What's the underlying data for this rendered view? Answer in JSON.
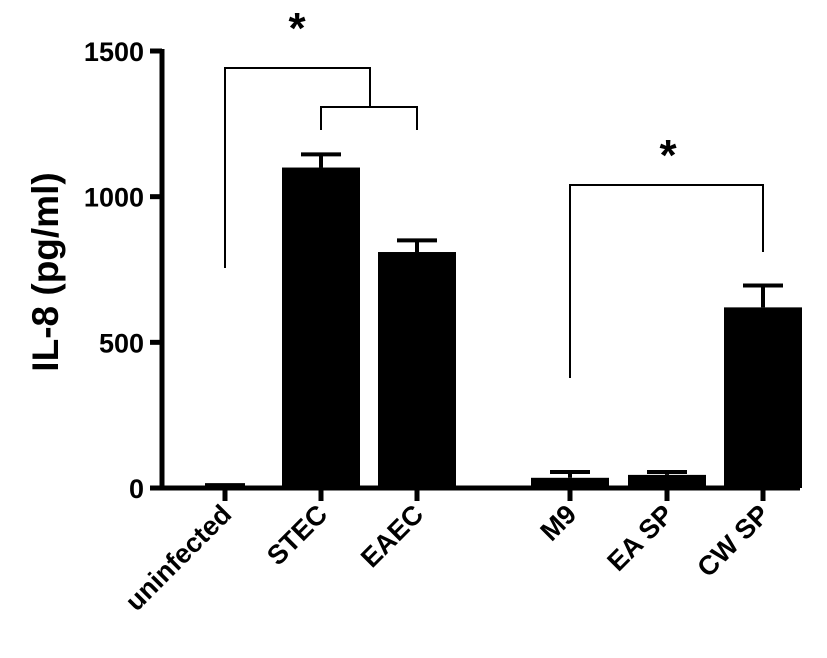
{
  "chart_data": {
    "type": "bar",
    "ylabel": "IL-8 (pg/ml)",
    "ylim": [
      0,
      1500
    ],
    "yticks": [
      0,
      500,
      1000,
      1500
    ],
    "ytick_labels": [
      "0",
      "500",
      "1000",
      "1500"
    ],
    "categories": [
      "uninfected",
      "STEC",
      "EAEC",
      "M9",
      "EA SP",
      "CW SP"
    ],
    "values": [
      5,
      1100,
      810,
      35,
      45,
      620
    ],
    "errors": [
      5,
      45,
      40,
      20,
      10,
      75
    ],
    "bar_color": "#000000",
    "grid": false,
    "legend": "none",
    "annotations": [
      {
        "text": "*",
        "compares": [
          "uninfected",
          [
            "STEC",
            "EAEC"
          ]
        ]
      },
      {
        "text": "*",
        "compares": [
          "M9",
          "CW SP"
        ]
      }
    ]
  }
}
